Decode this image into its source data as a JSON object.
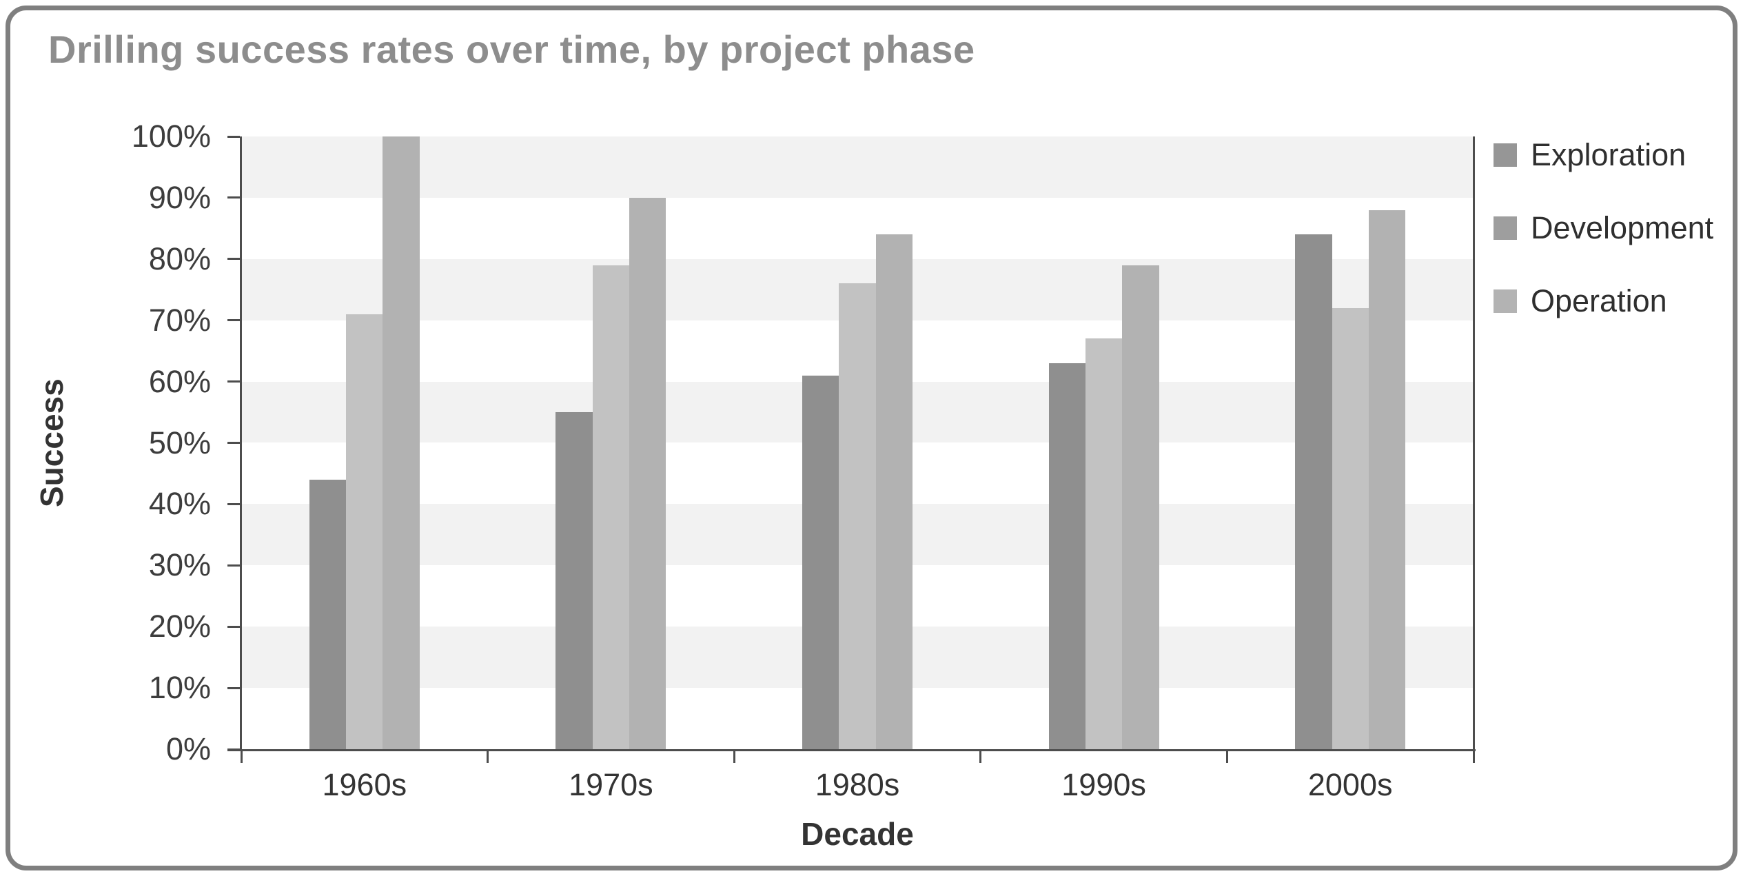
{
  "card": {
    "border_color": "#7f7f7f",
    "background_color": "#ffffff"
  },
  "chart_data": {
    "type": "bar",
    "title": "Drilling success rates over time, by project phase",
    "title_color": "#8d8d8d",
    "xlabel": "Decade",
    "ylabel": "Success",
    "categories": [
      "1960s",
      "1970s",
      "1980s",
      "1990s",
      "2000s"
    ],
    "series": [
      {
        "name": "Exploration",
        "color": "#8f8f8f",
        "legend_color": "#969696",
        "values": [
          44,
          55,
          61,
          63,
          84
        ]
      },
      {
        "name": "Development",
        "color": "#c2c2c2",
        "legend_color": "#9e9e9e",
        "values": [
          71,
          79,
          76,
          67,
          72
        ]
      },
      {
        "name": "Operation",
        "color": "#b2b2b2",
        "legend_color": "#b3b3b3",
        "values": [
          100,
          90,
          84,
          79,
          88
        ]
      }
    ],
    "ylim": [
      0,
      100
    ],
    "y_ticks": [
      "0%",
      "10%",
      "20%",
      "30%",
      "40%",
      "50%",
      "60%",
      "70%",
      "80%",
      "90%",
      "100%"
    ],
    "legend_position": "right",
    "grid": "alternating horizontal bands, gray band from 100-90 downward every other 10%",
    "band_colors": [
      "#f2f2f2",
      "#ffffff"
    ],
    "axis_color": "#4d4d4d",
    "tick_text_color": "#3d3d3d"
  }
}
